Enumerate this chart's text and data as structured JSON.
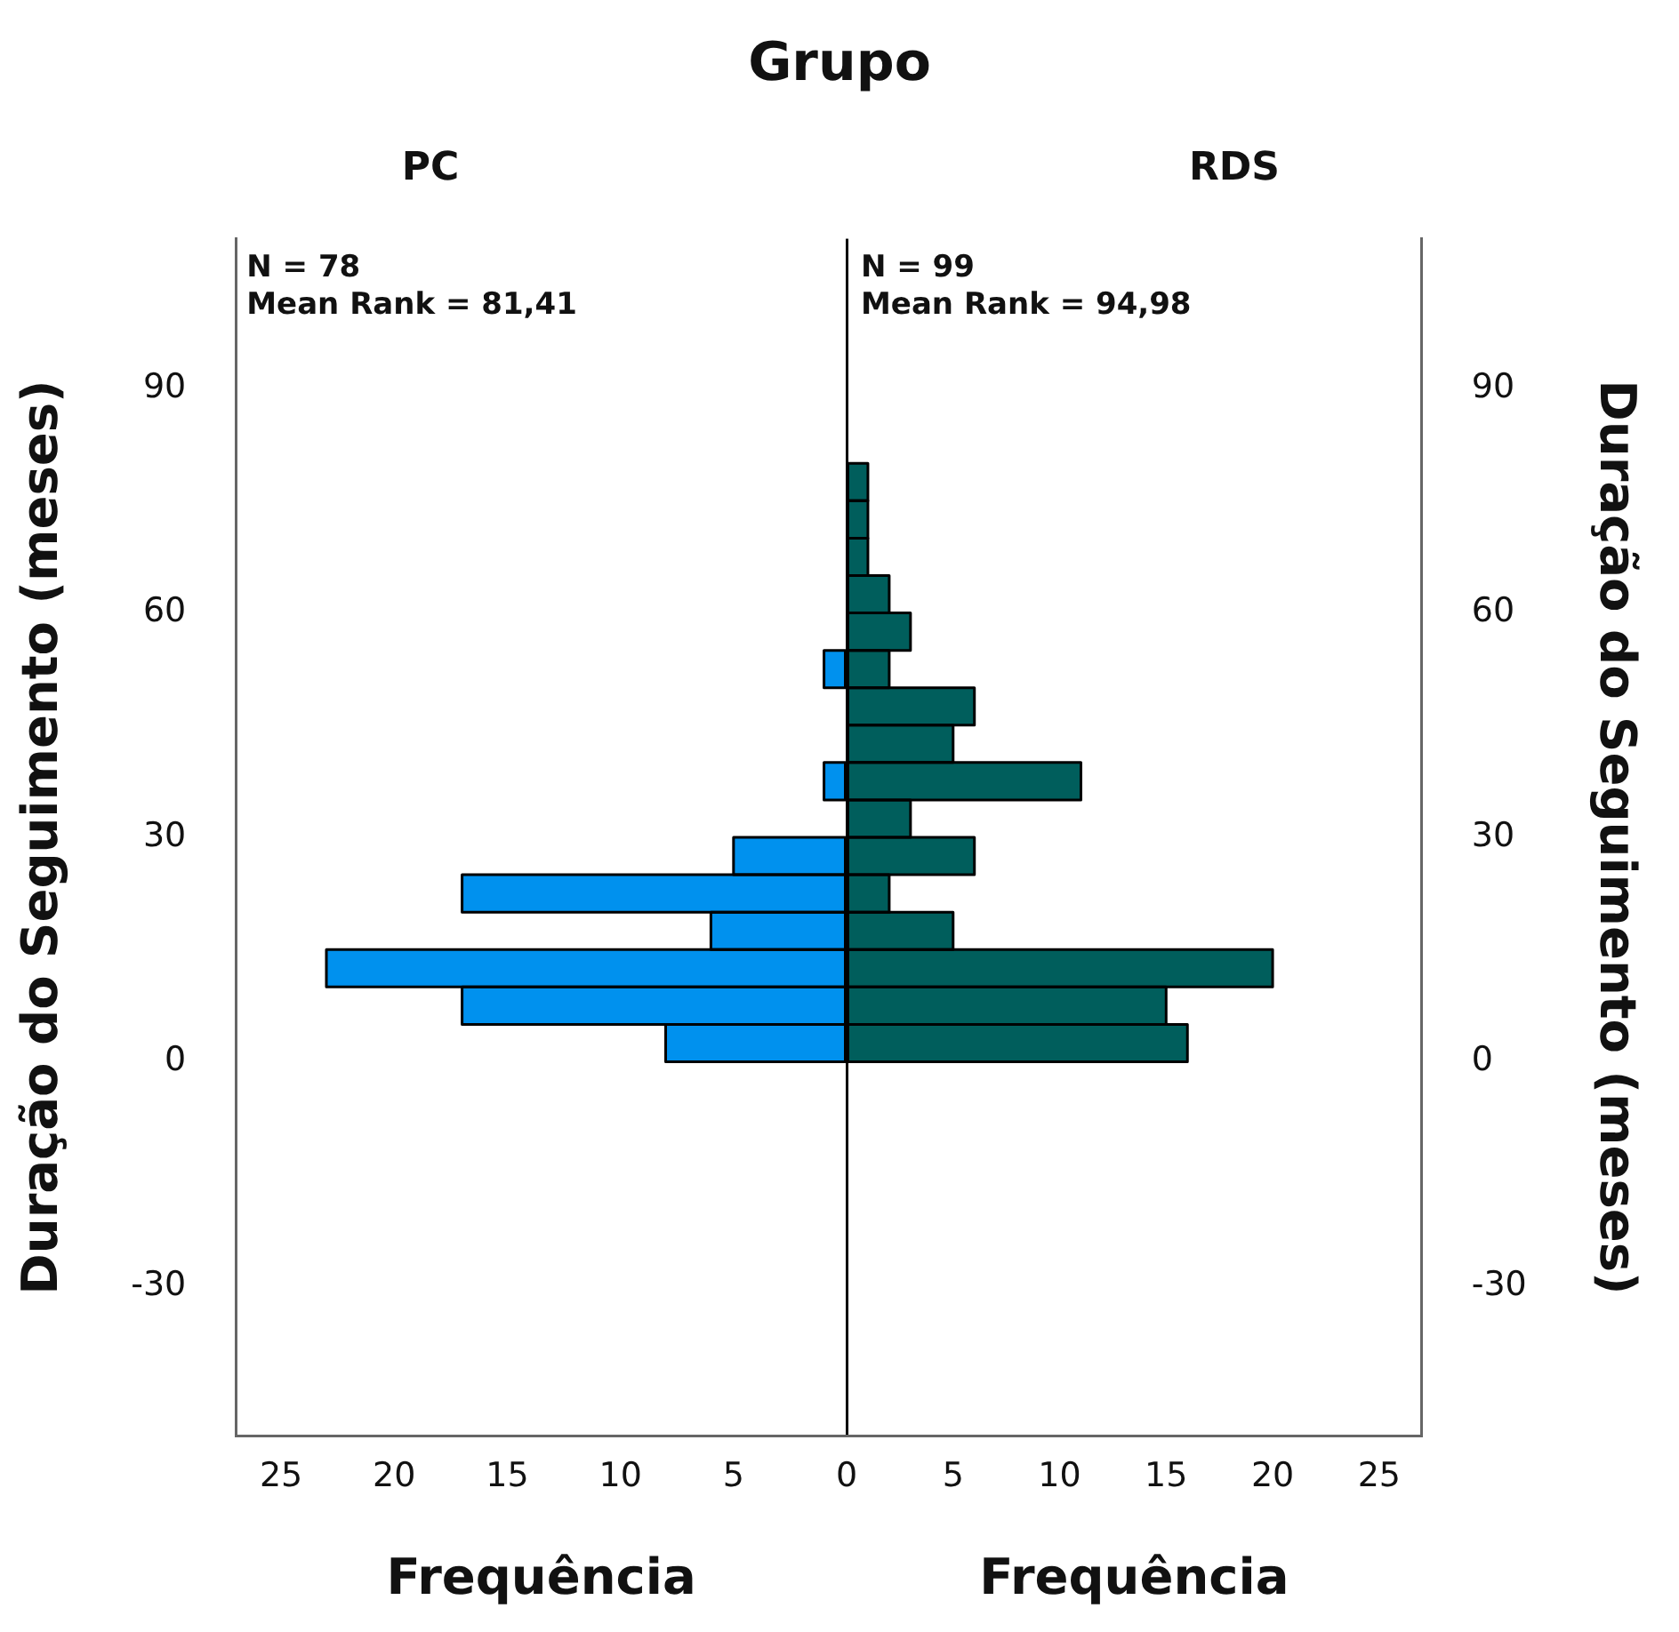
{
  "chart_data": [
    {
      "type": "other",
      "title": "Grupo"
    },
    {
      "type": "histogram",
      "orientation": "horizontal",
      "title": "PC",
      "xlabel": "Frequência",
      "ylabel": "Duração do Seguimento (meses)",
      "annotations": [
        "N = 78",
        "Mean Rank = 81,41"
      ],
      "color": "#0091ee",
      "bins": [
        0,
        5,
        10,
        15,
        20,
        25,
        30,
        35,
        40,
        45,
        50,
        55,
        60,
        65,
        70,
        75,
        80
      ],
      "values": [
        8,
        17,
        23,
        6,
        17,
        5,
        0,
        1,
        0,
        0,
        1,
        0,
        0,
        0,
        0,
        0
      ],
      "xlim": [
        27,
        0
      ],
      "xticks": [
        25,
        20,
        15,
        10,
        5,
        0
      ],
      "ylim": [
        -50,
        110
      ],
      "yticks": [
        -30,
        0,
        30,
        60,
        90
      ]
    },
    {
      "type": "histogram",
      "orientation": "horizontal",
      "title": "RDS",
      "xlabel": "Frequência",
      "ylabel": "Duração do Seguimento (meses)",
      "annotations": [
        "N = 99",
        "Mean Rank = 94,98"
      ],
      "color": "#005e5c",
      "bins": [
        0,
        5,
        10,
        15,
        20,
        25,
        30,
        35,
        40,
        45,
        50,
        55,
        60,
        65,
        70,
        75,
        80
      ],
      "values": [
        16,
        15,
        20,
        5,
        2,
        6,
        3,
        11,
        5,
        6,
        2,
        3,
        2,
        1,
        1,
        1
      ],
      "xlim": [
        0,
        27
      ],
      "xticks": [
        {
          "value": 0,
          "label": null
        },
        5,
        10,
        15,
        20,
        25
      ],
      "ylim": [
        -50,
        110
      ],
      "yticks": [
        -30,
        0,
        30,
        60,
        90
      ]
    }
  ]
}
